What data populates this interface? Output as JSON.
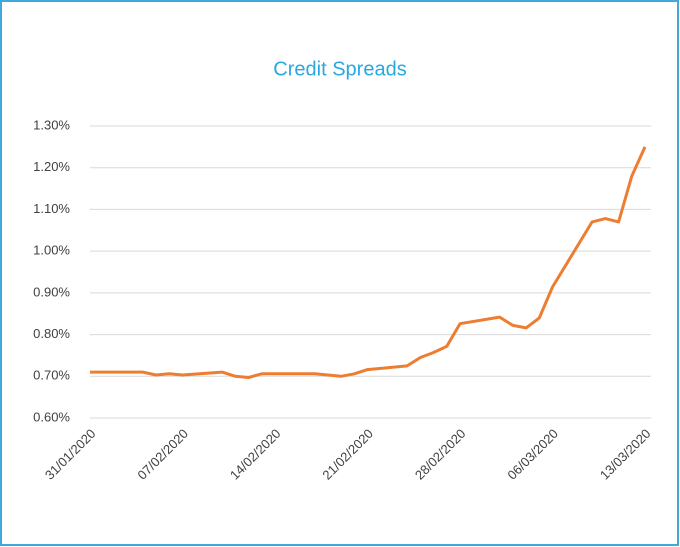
{
  "chart_data": {
    "type": "line",
    "title": "Credit Spreads",
    "x": [
      "2020-01-31",
      "2020-02-03",
      "2020-02-04",
      "2020-02-05",
      "2020-02-06",
      "2020-02-07",
      "2020-02-10",
      "2020-02-11",
      "2020-02-12",
      "2020-02-13",
      "2020-02-14",
      "2020-02-17",
      "2020-02-18",
      "2020-02-19",
      "2020-02-20",
      "2020-02-21",
      "2020-02-24",
      "2020-02-25",
      "2020-02-26",
      "2020-02-27",
      "2020-02-28",
      "2020-03-02",
      "2020-03-03",
      "2020-03-04",
      "2020-03-05",
      "2020-03-06",
      "2020-03-09",
      "2020-03-10",
      "2020-03-11",
      "2020-03-12",
      "2020-03-13"
    ],
    "series": [
      {
        "name": "Credit Spreads",
        "color": "#ed7d31",
        "values": [
          0.71,
          0.71,
          0.71,
          0.703,
          0.706,
          0.703,
          0.71,
          0.7,
          0.697,
          0.706,
          0.706,
          0.706,
          0.703,
          0.7,
          0.706,
          0.716,
          0.725,
          0.745,
          0.757,
          0.772,
          0.826,
          0.842,
          0.822,
          0.816,
          0.84,
          0.914,
          1.07,
          1.078,
          1.07,
          1.18,
          1.25
        ]
      }
    ],
    "xlim": [
      "2020-01-31",
      "2020-03-13"
    ],
    "xticks": [
      {
        "value": "2020-01-31",
        "label": "31/01/2020"
      },
      {
        "value": "2020-02-07",
        "label": "07/02/2020"
      },
      {
        "value": "2020-02-14",
        "label": "14/02/2020"
      },
      {
        "value": "2020-02-21",
        "label": "21/02/2020"
      },
      {
        "value": "2020-02-28",
        "label": "28/02/2020"
      },
      {
        "value": "2020-03-06",
        "label": "06/03/2020"
      },
      {
        "value": "2020-03-13",
        "label": "13/03/2020"
      }
    ],
    "ylim": [
      0.6,
      1.3
    ],
    "yticks": [
      {
        "value": 0.6,
        "label": "0.60%"
      },
      {
        "value": 0.7,
        "label": "0.70%"
      },
      {
        "value": 0.8,
        "label": "0.80%"
      },
      {
        "value": 0.9,
        "label": "0.90%"
      },
      {
        "value": 1.0,
        "label": "1.00%"
      },
      {
        "value": 1.1,
        "label": "1.10%"
      },
      {
        "value": 1.2,
        "label": "1.20%"
      },
      {
        "value": 1.3,
        "label": "1.30%"
      }
    ],
    "grid": true
  }
}
